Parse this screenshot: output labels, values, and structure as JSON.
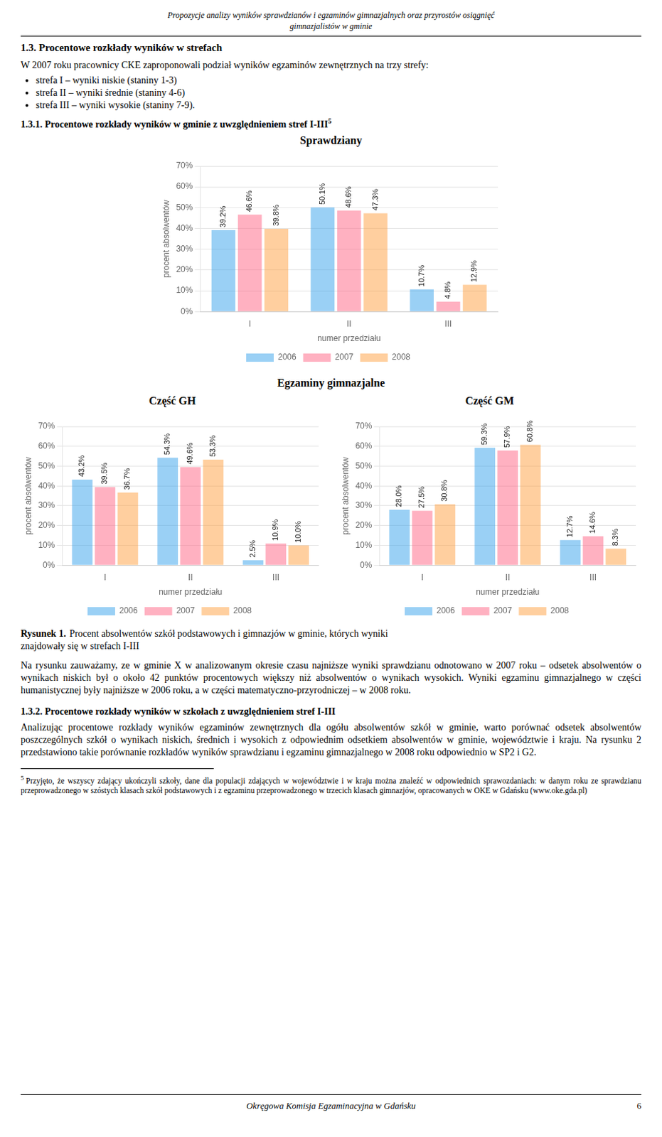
{
  "annotations": [
    "Propozycje analizy wyników sprawdzianów i egzaminów gimnazjalnych oraz przyrostów osiągnięć",
    "gimnazjalistów w gminie",
    "1.3. Procentowe rozkłady wyników w strefach",
    "W 2007 roku pracownicy CKE zaproponowali podział wyników egzaminów zewnętrznych na trzy strefy:",
    "strefa I – wyniki niskie (staniny 1-3)",
    "strefa II – wyniki średnie (staniny 4-6)",
    "strefa III – wyniki wysokie (staniny 7-9).",
    "1.3.1. Procentowe rozkłady wyników w gminie z uwzględnieniem stref I-III",
    "5",
    "Egzaminy gimnazjalne",
    "Rysunek 1.",
    "Procent absolwentów szkół podstawowych i gimnazjów w gminie, których wyniki",
    "znajdowały się w strefach I-III",
    "Na rysunku zauważamy, ze w gminie X w analizowanym okresie czasu najniższe wyniki sprawdzianu odnotowano w 2007 roku – odsetek absolwentów o wynikach niskich był o około 42 punktów procentowych większy niż absolwentów o wynikach wysokich. Wyniki egzaminu gimnazjalnego w części humanistycznej były najniższe w 2006 roku, a w części matematyczno-przyrodniczej – w 2008 roku.",
    "1.3.2. Procentowe rozkłady wyników w szkołach z uwzględnieniem stref I-III",
    "Analizując procentowe rozkłady wyników egzaminów zewnętrznych dla ogółu absolwentów szkół w gminie, warto porównać odsetek absolwentów poszczególnych szkół o wynikach niskich, średnich i wysokich z odpowiednim odsetkiem absolwentów w gminie, województwie i kraju. Na rysunku 2 przedstawiono takie porównanie rozkładów wyników sprawdzianu i egzaminu gimnazjalnego w 2008 roku odpowiednio w SP2 i G2.",
    "5",
    "Przyjęto, że wszyscy zdający ukończyli szkoły, dane dla populacji zdających w województwie i w kraju można znaleźć w odpowiednich sprawozdaniach: w danym roku ze sprawdzianu przeprowadzonego w szóstych klasach szkół podstawowych i z egzaminu przeprowadzonego w trzecich klasach gimnazjów, opracowanych w OKE w Gdańsku (www.oke.gda.pl)",
    "Okręgowa Komisja Egzaminacyjna w Gdańsku",
    "6"
  ],
  "chart_data": [
    {
      "type": "bar",
      "title": "Sprawdziany",
      "categories": [
        "I",
        "II",
        "III"
      ],
      "series": [
        {
          "name": "2006",
          "values": [
            39.2,
            50.1,
            10.7
          ],
          "value_labels": [
            "39.2%",
            "50.1%",
            "10.7%"
          ]
        },
        {
          "name": "2007",
          "values": [
            46.6,
            48.6,
            4.8
          ],
          "value_labels": [
            "46.6%",
            "48.6%",
            "4.8%"
          ]
        },
        {
          "name": "2008",
          "values": [
            39.8,
            47.3,
            12.9
          ],
          "value_labels": [
            "39.8%",
            "47.3%",
            "12.9%"
          ]
        }
      ],
      "xlabel": "numer przedziału",
      "ylabel": "procent absolwentów",
      "ylim": [
        0,
        70
      ],
      "yticks": [
        {
          "value": 0,
          "label": "0%"
        },
        {
          "value": 10,
          "label": "10%"
        },
        {
          "value": 20,
          "label": "20%"
        },
        {
          "value": 30,
          "label": "30%"
        },
        {
          "value": 40,
          "label": "40%"
        },
        {
          "value": 50,
          "label": "50%"
        },
        {
          "value": 60,
          "label": "60%"
        },
        {
          "value": 70,
          "label": "70%"
        }
      ],
      "grid": true,
      "legend": "bottom",
      "data_labels": true
    },
    {
      "type": "bar",
      "title": "Część GH",
      "categories": [
        "I",
        "II",
        "III"
      ],
      "series": [
        {
          "name": "2006",
          "values": [
            43.2,
            54.3,
            2.5
          ],
          "value_labels": [
            "43.2%",
            "54.3%",
            "2.5%"
          ]
        },
        {
          "name": "2007",
          "values": [
            39.5,
            49.6,
            10.9
          ],
          "value_labels": [
            "39.5%",
            "49.6%",
            "10.9%"
          ]
        },
        {
          "name": "2008",
          "values": [
            36.7,
            53.3,
            10.0
          ],
          "value_labels": [
            "36.7%",
            "53.3%",
            "10.0%"
          ]
        }
      ],
      "xlabel": "numer przedziału",
      "ylabel": "procent absolwentów",
      "ylim": [
        0,
        70
      ],
      "yticks": [
        {
          "value": 0,
          "label": "0%"
        },
        {
          "value": 10,
          "label": "10%"
        },
        {
          "value": 20,
          "label": "20%"
        },
        {
          "value": 30,
          "label": "30%"
        },
        {
          "value": 40,
          "label": "40%"
        },
        {
          "value": 50,
          "label": "50%"
        },
        {
          "value": 60,
          "label": "60%"
        },
        {
          "value": 70,
          "label": "70%"
        }
      ],
      "grid": true,
      "legend": "bottom",
      "data_labels": true
    },
    {
      "type": "bar",
      "title": "Część GM",
      "categories": [
        "I",
        "II",
        "III"
      ],
      "series": [
        {
          "name": "2006",
          "values": [
            28.0,
            59.3,
            12.7
          ],
          "value_labels": [
            "28.0%",
            "59.3%",
            "12.7%"
          ]
        },
        {
          "name": "2007",
          "values": [
            27.5,
            57.9,
            14.6
          ],
          "value_labels": [
            "27.5%",
            "57.9%",
            "14.6%"
          ]
        },
        {
          "name": "2008",
          "values": [
            30.8,
            60.8,
            8.3
          ],
          "value_labels": [
            "30.8%",
            "60.8%",
            "8.3%"
          ]
        }
      ],
      "xlabel": "numer przedziału",
      "ylabel": "procent absolwentów",
      "ylim": [
        0,
        70
      ],
      "yticks": [
        {
          "value": 0,
          "label": "0%"
        },
        {
          "value": 10,
          "label": "10%"
        },
        {
          "value": 20,
          "label": "20%"
        },
        {
          "value": 30,
          "label": "30%"
        },
        {
          "value": 40,
          "label": "40%"
        },
        {
          "value": 50,
          "label": "50%"
        },
        {
          "value": 60,
          "label": "60%"
        },
        {
          "value": 70,
          "label": "70%"
        }
      ],
      "grid": true,
      "legend": "bottom",
      "data_labels": true
    }
  ]
}
